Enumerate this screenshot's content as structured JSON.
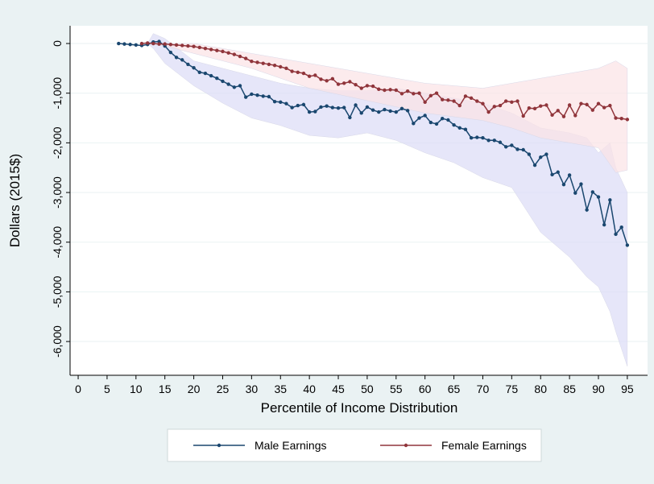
{
  "chart_data": {
    "type": "line",
    "xlabel": "Percentile of Income Distribution",
    "ylabel": "Dollars (2015$)",
    "xlim": [
      -1.4,
      98.5
    ],
    "ylim": [
      -6680,
      357
    ],
    "xticks": [
      0,
      5,
      10,
      15,
      20,
      25,
      30,
      35,
      40,
      45,
      50,
      55,
      60,
      65,
      70,
      75,
      80,
      85,
      90,
      95
    ],
    "yticks": [
      {
        "value": 0,
        "label": "0"
      },
      {
        "value": -1000,
        "label": "-1,000"
      },
      {
        "value": -2000,
        "label": "-2,000"
      },
      {
        "value": -3000,
        "label": "-3,000"
      },
      {
        "value": -4000,
        "label": "-4,000"
      },
      {
        "value": -5000,
        "label": "-5,000"
      },
      {
        "value": -6000,
        "label": "-6,000"
      }
    ],
    "grid": true,
    "legend": "bottom",
    "series": [
      {
        "name": "Male Earnings",
        "color": "#1a476f",
        "band_color": "#dcdcf6",
        "x": [
          7,
          8,
          9,
          10,
          11,
          12,
          13,
          14,
          15,
          16,
          17,
          18,
          19,
          20,
          21,
          22,
          23,
          24,
          25,
          26,
          27,
          28,
          29,
          30,
          31,
          32,
          33,
          34,
          35,
          36,
          37,
          38,
          39,
          40,
          41,
          42,
          43,
          44,
          45,
          46,
          47,
          48,
          49,
          50,
          51,
          52,
          53,
          54,
          55,
          56,
          57,
          58,
          59,
          60,
          61,
          62,
          63,
          64,
          65,
          66,
          67,
          68,
          69,
          70,
          71,
          72,
          73,
          74,
          75,
          76,
          77,
          78,
          79,
          80,
          81,
          82,
          83,
          84,
          85,
          86,
          87,
          88,
          89,
          90,
          91,
          92,
          93,
          94,
          95
        ],
        "values": [
          0,
          -10,
          -20,
          -30,
          -40,
          -20,
          30,
          40,
          -50,
          -180,
          -280,
          -330,
          -420,
          -490,
          -580,
          -600,
          -650,
          -700,
          -760,
          -820,
          -880,
          -850,
          -1080,
          -1020,
          -1040,
          -1060,
          -1070,
          -1170,
          -1180,
          -1210,
          -1290,
          -1250,
          -1230,
          -1380,
          -1370,
          -1280,
          -1260,
          -1290,
          -1300,
          -1290,
          -1490,
          -1240,
          -1400,
          -1280,
          -1340,
          -1380,
          -1330,
          -1360,
          -1380,
          -1310,
          -1350,
          -1610,
          -1500,
          -1450,
          -1590,
          -1620,
          -1510,
          -1540,
          -1640,
          -1700,
          -1730,
          -1900,
          -1890,
          -1900,
          -1950,
          -1950,
          -1990,
          -2080,
          -2050,
          -2130,
          -2140,
          -2230,
          -2450,
          -2290,
          -2230,
          -2640,
          -2590,
          -2840,
          -2650,
          -3010,
          -2830,
          -3350,
          -2990,
          -3090,
          -3650,
          -3150,
          -3840,
          -3700,
          -4060
        ],
        "band": {
          "x": [
            12,
            13,
            15,
            20,
            25,
            30,
            35,
            40,
            45,
            50,
            55,
            60,
            65,
            70,
            75,
            80,
            85,
            88,
            90,
            92,
            93,
            95
          ],
          "upper": [
            0,
            200,
            100,
            -350,
            -500,
            -650,
            -800,
            -900,
            -950,
            -950,
            -900,
            -1000,
            -1100,
            -1200,
            -1400,
            -1700,
            -1800,
            -1900,
            -2200,
            -2000,
            -2500,
            -3000
          ],
          "lower": [
            0,
            -100,
            -400,
            -850,
            -1200,
            -1500,
            -1650,
            -1850,
            -1900,
            -1800,
            -1950,
            -2200,
            -2400,
            -2700,
            -2900,
            -3800,
            -4300,
            -4700,
            -4900,
            -5400,
            -5800,
            -6500
          ]
        }
      },
      {
        "name": "Female Earnings",
        "color": "#90353b",
        "band_color": "#fbe3e6",
        "x": [
          11,
          12,
          13,
          14,
          15,
          16,
          17,
          18,
          19,
          20,
          21,
          22,
          23,
          24,
          25,
          26,
          27,
          28,
          29,
          30,
          31,
          32,
          33,
          34,
          35,
          36,
          37,
          38,
          39,
          40,
          41,
          42,
          43,
          44,
          45,
          46,
          47,
          48,
          49,
          50,
          51,
          52,
          53,
          54,
          55,
          56,
          57,
          58,
          59,
          60,
          61,
          62,
          63,
          64,
          65,
          66,
          67,
          68,
          69,
          70,
          71,
          72,
          73,
          74,
          75,
          76,
          77,
          78,
          79,
          80,
          81,
          82,
          83,
          84,
          85,
          86,
          87,
          88,
          89,
          90,
          91,
          92,
          93,
          94,
          95
        ],
        "values": [
          0,
          10,
          0,
          -10,
          -10,
          -20,
          -30,
          -40,
          -50,
          -60,
          -80,
          -100,
          -120,
          -140,
          -160,
          -190,
          -220,
          -260,
          -300,
          -360,
          -380,
          -400,
          -420,
          -440,
          -470,
          -500,
          -560,
          -580,
          -600,
          -660,
          -640,
          -720,
          -750,
          -710,
          -820,
          -800,
          -770,
          -830,
          -900,
          -850,
          -860,
          -920,
          -940,
          -930,
          -940,
          -1010,
          -960,
          -1010,
          -1000,
          -1180,
          -1050,
          -1000,
          -1130,
          -1140,
          -1160,
          -1250,
          -1060,
          -1100,
          -1160,
          -1210,
          -1380,
          -1270,
          -1250,
          -1160,
          -1180,
          -1160,
          -1460,
          -1300,
          -1310,
          -1260,
          -1240,
          -1440,
          -1350,
          -1470,
          -1240,
          -1450,
          -1210,
          -1230,
          -1340,
          -1210,
          -1290,
          -1250,
          -1500,
          -1510,
          -1530
        ],
        "band": {
          "x": [
            11,
            15,
            20,
            30,
            40,
            50,
            60,
            70,
            75,
            80,
            85,
            90,
            93,
            95
          ],
          "upper": [
            0,
            0,
            0,
            -200,
            -400,
            -600,
            -800,
            -900,
            -800,
            -700,
            -600,
            -500,
            -350,
            -500
          ],
          "lower": [
            0,
            -50,
            -200,
            -500,
            -900,
            -1150,
            -1400,
            -1550,
            -1700,
            -1900,
            -2000,
            -2100,
            -2600,
            -2550
          ]
        }
      }
    ]
  }
}
